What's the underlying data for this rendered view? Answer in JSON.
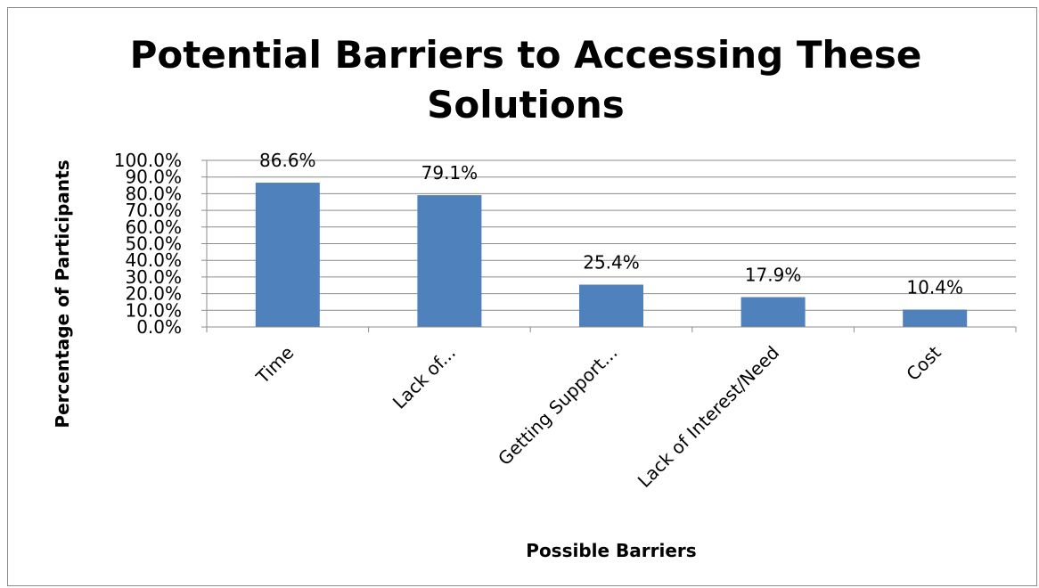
{
  "chart_data": {
    "type": "bar",
    "title": "Potential Barriers to Accessing These Solutions",
    "title_lines": [
      "Potential Barriers to Accessing These",
      "Solutions"
    ],
    "xlabel": "Possible Barriers",
    "ylabel": "Percentage of Participants",
    "categories": [
      "Time",
      "Lack of...",
      "Getting Support...",
      "Lack of Interest/Need",
      "Cost"
    ],
    "values": [
      86.6,
      79.1,
      25.4,
      17.9,
      10.4
    ],
    "data_labels": [
      "86.6%",
      "79.1%",
      "25.4%",
      "17.9%",
      "10.4%"
    ],
    "ylim": [
      0,
      100
    ],
    "y_ticks": [
      "0.0%",
      "10.0%",
      "20.0%",
      "30.0%",
      "40.0%",
      "50.0%",
      "60.0%",
      "70.0%",
      "80.0%",
      "90.0%",
      "100.0%"
    ],
    "grid": true,
    "legend": "none",
    "bar_color": "#4f81bd"
  }
}
